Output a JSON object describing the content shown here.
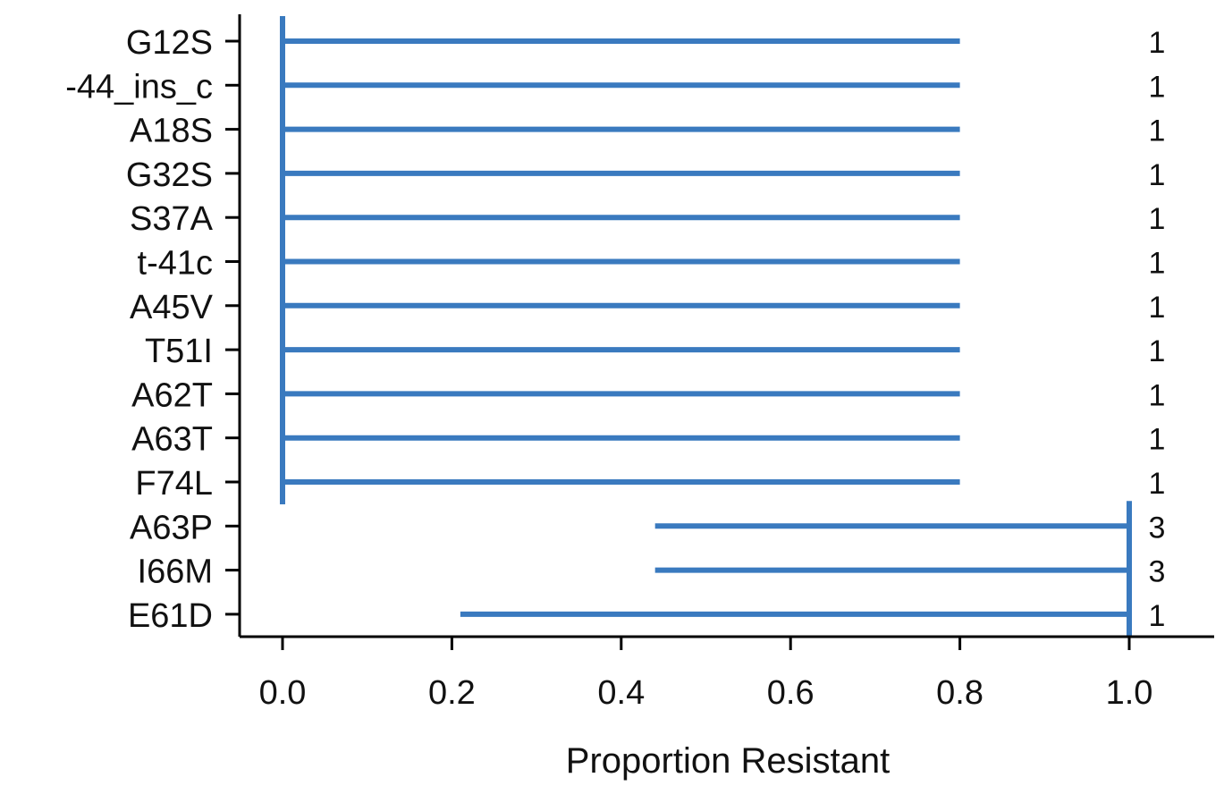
{
  "chart_data": {
    "type": "interval",
    "title": "",
    "xlabel": "Proportion Resistant",
    "ylabel": "",
    "xlim": [
      -0.1,
      1.1
    ],
    "xticks": [
      0.0,
      0.2,
      0.4,
      0.6,
      0.8,
      1.0
    ],
    "xtick_labels": [
      "0.0",
      "0.2",
      "0.4",
      "0.6",
      "0.8",
      "1.0"
    ],
    "grid": false,
    "legend": "none",
    "color": "#3a7abf",
    "rows": [
      {
        "label": "G12S",
        "low": 0.0,
        "high": 0.8,
        "estimate": 0.0,
        "count": "1"
      },
      {
        "label": "-44_ins_c",
        "low": 0.0,
        "high": 0.8,
        "estimate": 0.0,
        "count": "1"
      },
      {
        "label": "A18S",
        "low": 0.0,
        "high": 0.8,
        "estimate": 0.0,
        "count": "1"
      },
      {
        "label": "G32S",
        "low": 0.0,
        "high": 0.8,
        "estimate": 0.0,
        "count": "1"
      },
      {
        "label": "S37A",
        "low": 0.0,
        "high": 0.8,
        "estimate": 0.0,
        "count": "1"
      },
      {
        "label": "t-41c",
        "low": 0.0,
        "high": 0.8,
        "estimate": 0.0,
        "count": "1"
      },
      {
        "label": "A45V",
        "low": 0.0,
        "high": 0.8,
        "estimate": 0.0,
        "count": "1"
      },
      {
        "label": "T51I",
        "low": 0.0,
        "high": 0.8,
        "estimate": 0.0,
        "count": "1"
      },
      {
        "label": "A62T",
        "low": 0.0,
        "high": 0.8,
        "estimate": 0.0,
        "count": "1"
      },
      {
        "label": "A63T",
        "low": 0.0,
        "high": 0.8,
        "estimate": 0.0,
        "count": "1"
      },
      {
        "label": "F74L",
        "low": 0.0,
        "high": 0.8,
        "estimate": 0.0,
        "count": "1"
      },
      {
        "label": "A63P",
        "low": 0.44,
        "high": 1.0,
        "estimate": 1.0,
        "count": "3"
      },
      {
        "label": "I66M",
        "low": 0.44,
        "high": 1.0,
        "estimate": 1.0,
        "count": "3"
      },
      {
        "label": "E61D",
        "low": 0.21,
        "high": 1.0,
        "estimate": 1.0,
        "count": "1"
      }
    ]
  }
}
